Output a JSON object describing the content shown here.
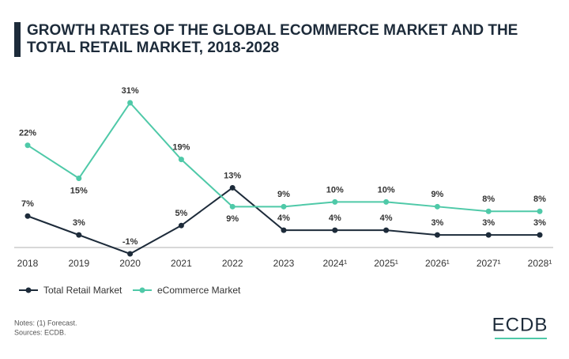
{
  "chart_data": {
    "type": "line",
    "title": "GROWTH RATES OF THE GLOBAL ECOMMERCE MARKET AND THE TOTAL RETAIL MARKET, 2018-2028",
    "categories": [
      "2018",
      "2019",
      "2020",
      "2021",
      "2022",
      "2023",
      "2024¹",
      "2025¹",
      "2026¹",
      "2027¹",
      "2028¹"
    ],
    "series": [
      {
        "name": "Total Retail Market",
        "color": "#1d2b3a",
        "values": [
          7,
          3,
          -1,
          5,
          13,
          4,
          4,
          4,
          3,
          3,
          3
        ],
        "value_labels": [
          "7%",
          "3%",
          "-1%",
          "5%",
          "13%",
          "4%",
          "4%",
          "4%",
          "3%",
          "3%",
          "3%"
        ]
      },
      {
        "name": "eCommerce Market",
        "color": "#4fc9a8",
        "values": [
          22,
          15,
          31,
          19,
          9,
          9,
          10,
          10,
          9,
          8,
          8
        ],
        "value_labels": [
          "22%",
          "15%",
          "31%",
          "19%",
          "9%",
          "9%",
          "10%",
          "10%",
          "9%",
          "8%",
          "8%"
        ]
      }
    ],
    "notes": "Notes: (1) Forecast.",
    "source": "Sources: ECDB.",
    "logo": "ECDB"
  }
}
